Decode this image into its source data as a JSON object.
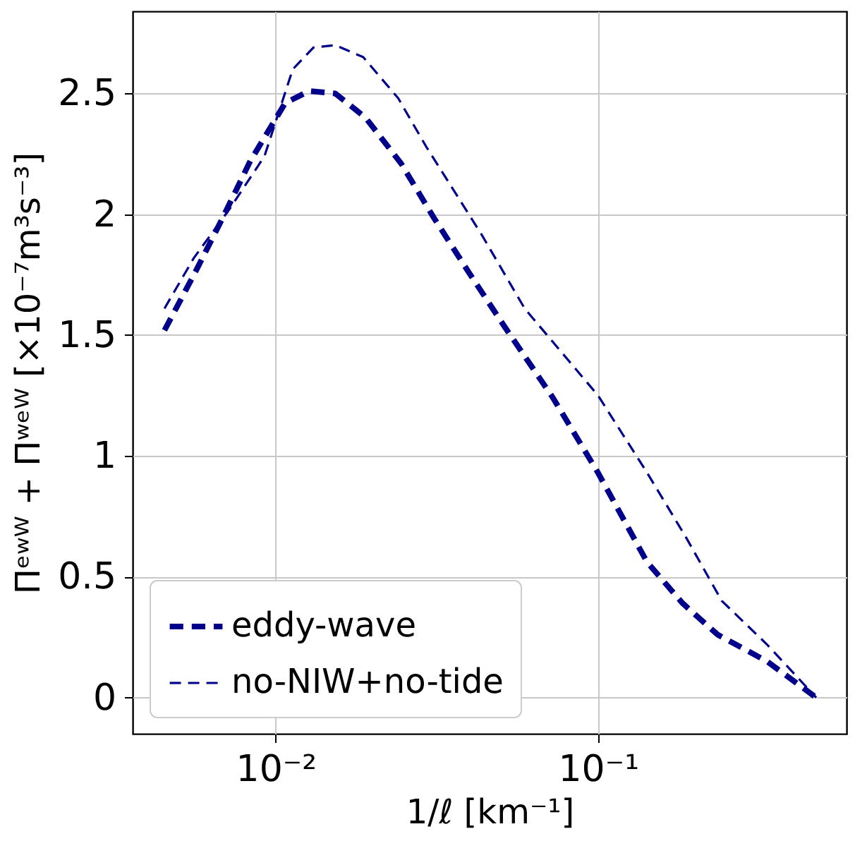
{
  "chart_data": {
    "type": "line",
    "xlabel": "1/ℓ [km⁻¹]",
    "ylabel": "Πᵉʷᵂ + Πʷᵉᵂ [×10⁻⁷m³s⁻³]",
    "log": "x",
    "grid": true,
    "legend": "bottom left",
    "line_style": "dashed",
    "marker": "none",
    "xlim": [
      0.0036,
      0.59
    ],
    "ylim": [
      -0.15,
      2.84
    ],
    "xticks": [
      {
        "value": 0.01,
        "label": "10⁻²"
      },
      {
        "value": 0.1,
        "label": "10⁻¹"
      }
    ],
    "yticks": [
      0,
      0.5,
      1,
      1.5,
      2,
      2.5
    ],
    "series": [
      {
        "name": "eddy-wave",
        "color": "#00008b",
        "x": [
          0.00452,
          0.00558,
          0.00682,
          0.00834,
          0.0107,
          0.0127,
          0.0153,
          0.019,
          0.0245,
          0.0308,
          0.0397,
          0.051,
          0.0725,
          0.1,
          0.142,
          0.183,
          0.235,
          0.334,
          0.475
        ],
        "values": [
          1.52,
          1.75,
          1.98,
          2.22,
          2.46,
          2.51,
          2.5,
          2.4,
          2.21,
          1.99,
          1.76,
          1.54,
          1.24,
          0.93,
          0.56,
          0.39,
          0.26,
          0.15,
          0
        ]
      },
      {
        "name": "no-NIW+no-tide",
        "color": "#00008b",
        "x": [
          0.00452,
          0.00558,
          0.00718,
          0.00923,
          0.0113,
          0.0131,
          0.0153,
          0.0187,
          0.024,
          0.0293,
          0.0438,
          0.0592,
          0.1,
          0.142,
          0.188,
          0.242,
          0.334,
          0.475
        ],
        "values": [
          1.61,
          1.82,
          2.02,
          2.24,
          2.6,
          2.69,
          2.7,
          2.65,
          2.48,
          2.28,
          1.91,
          1.61,
          1.25,
          0.93,
          0.66,
          0.4,
          0.22,
          0
        ]
      }
    ]
  }
}
